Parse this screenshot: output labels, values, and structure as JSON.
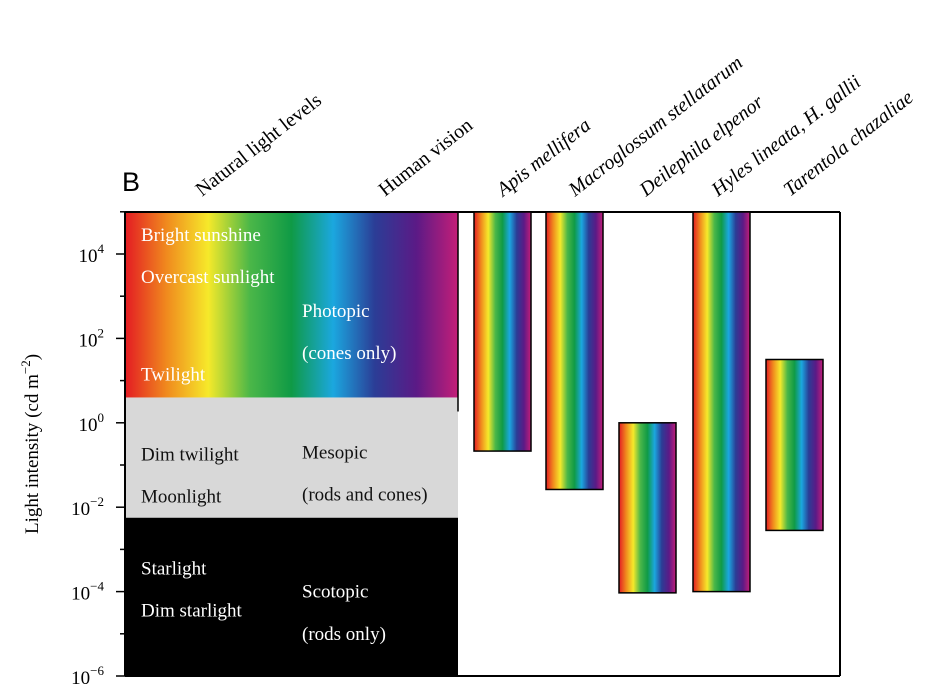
{
  "panel_label": "B",
  "chart_data": {
    "type": "range-bar",
    "ylabel_main": "Light intensity (cd m",
    "ylabel_sup": "−2",
    "ylabel_close": ")",
    "yscale": "log10",
    "ylim": [
      -6,
      5
    ],
    "yticks": [
      {
        "base": "10",
        "exp": "4",
        "value": 4
      },
      {
        "base": "10",
        "exp": "2",
        "value": 2
      },
      {
        "base": "10",
        "exp": "0",
        "value": 0
      },
      {
        "base": "10",
        "exp": "−2",
        "value": -2
      },
      {
        "base": "10",
        "exp": "−4",
        "value": -4
      },
      {
        "base": "10",
        "exp": "−6",
        "value": -6
      }
    ],
    "column_headers": [
      "Natural light levels",
      "Human vision"
    ],
    "bands": [
      {
        "from": 0.6,
        "to": 5,
        "fill": "spectrum",
        "text_color": "#ffffff",
        "natural": [
          "Bright sunshine",
          "Overcast sunlight",
          "Twilight"
        ],
        "natural_at": [
          4.45,
          3.45,
          1.15
        ],
        "vision": [
          "Photopic",
          "(cones only)"
        ],
        "vision_at": [
          2.65,
          1.65
        ]
      },
      {
        "from": -2.25,
        "to": 0.6,
        "fill": "#d8d8d8",
        "text_color": "#111111",
        "natural": [
          "Dim twilight",
          "Moonlight"
        ],
        "natural_at": [
          -0.75,
          -1.75
        ],
        "vision": [
          "Mesopic",
          "(rods and cones)"
        ],
        "vision_at": [
          -0.7,
          -1.7
        ],
        "line2_at": -1.7
      },
      {
        "from": -6,
        "to": -2.25,
        "fill": "#000000",
        "text_color": "#ffffff",
        "natural": [
          "Starlight",
          "Dim starlight"
        ],
        "natural_at": [
          -3.45,
          -4.45
        ],
        "vision": [
          "Scotopic",
          "(rods only)"
        ],
        "vision_at": [
          -4.0,
          -5.0
        ]
      }
    ],
    "species": [
      {
        "name": "Apis mellifera",
        "low": -0.67,
        "high": 5
      },
      {
        "name": "Macroglossum stellatarum",
        "low": -1.58,
        "high": 5
      },
      {
        "name": "Deilephila elpenor",
        "low": -4.03,
        "high": 0
      },
      {
        "name": "Hyles lineata, H. gallii",
        "low": -4.0,
        "high": 5
      },
      {
        "name": "Tarentola chazaliae",
        "low": -2.55,
        "high": 1.5
      }
    ],
    "spectrum_colors": [
      "#e31b23",
      "#f08a1e",
      "#f6e92a",
      "#4bb748",
      "#0f9a46",
      "#1ba7df",
      "#2b3d96",
      "#5b1a86",
      "#c41e78"
    ]
  }
}
